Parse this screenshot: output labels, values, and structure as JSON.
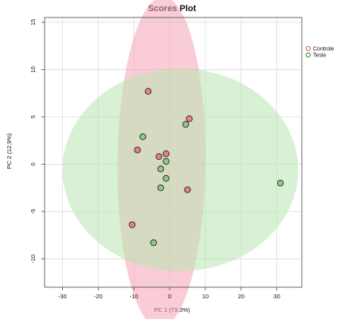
{
  "chart_data": {
    "type": "scatter",
    "title": "Scores Plot",
    "xlabel": "PC 1 (73,3%)",
    "ylabel": "PC 2 (12,9%)",
    "xlim": [
      -35,
      37
    ],
    "ylim": [
      -13,
      15.5
    ],
    "xticks": [
      -30,
      -20,
      -10,
      0,
      10,
      20,
      30
    ],
    "yticks": [
      -10,
      -5,
      0,
      5,
      10,
      15
    ],
    "grid": true,
    "legend_position": "right",
    "series": [
      {
        "name": "Controle",
        "color": "#d9566e",
        "fill": "#e8808a",
        "x": [
          -6,
          5.5,
          -9,
          -1,
          -3,
          5,
          -10.5
        ],
        "y": [
          7.7,
          4.8,
          1.5,
          1.1,
          0.8,
          -2.7,
          -6.4
        ],
        "ellipse": {
          "center": [
            -2.3,
            0.2
          ],
          "semi_axes": [
            17.5,
            12.3
          ],
          "angle_deg": 87,
          "color": "#f4a3b4"
        }
      },
      {
        "name": "Teste",
        "color": "#2f8a34",
        "fill": "#8dcd80",
        "x": [
          -7.5,
          4.5,
          -1,
          -2.5,
          -1,
          -2.5,
          31,
          -4.5
        ],
        "y": [
          2.9,
          4.2,
          0.3,
          -0.5,
          -1.5,
          -2.5,
          -2.0,
          -8.3
        ],
        "ellipse": {
          "center": [
            3.0,
            -0.6
          ],
          "semi_axes": [
            33.0,
            10.7
          ],
          "angle_deg": 0,
          "color": "#b8e6b0"
        }
      }
    ]
  }
}
